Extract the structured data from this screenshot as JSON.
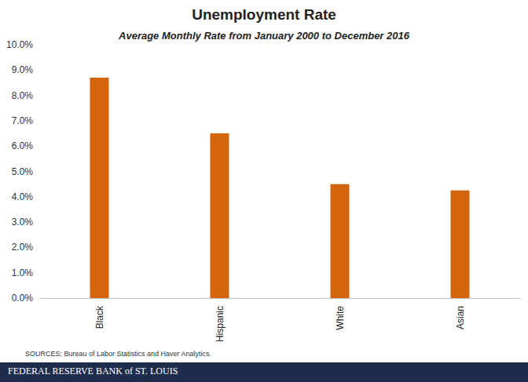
{
  "chart_data": {
    "type": "bar",
    "title": "Unemployment Rate",
    "subtitle": "Average Monthly Rate from January 2000 to December 2016",
    "categories": [
      "Black",
      "Hispanic",
      "White",
      "Asian"
    ],
    "values": [
      8.7,
      6.5,
      4.5,
      4.25
    ],
    "color": "#d4650f",
    "ylim": [
      0,
      10
    ],
    "yticks": [
      {
        "value": 0,
        "label": "0.0%"
      },
      {
        "value": 1,
        "label": "1.0%"
      },
      {
        "value": 2,
        "label": "2.0%"
      },
      {
        "value": 3,
        "label": "3.0%"
      },
      {
        "value": 4,
        "label": "4.0%"
      },
      {
        "value": 5,
        "label": "5.0%"
      },
      {
        "value": 6,
        "label": "6.0%"
      },
      {
        "value": 7,
        "label": "7.0%"
      },
      {
        "value": 8,
        "label": "8.0%"
      },
      {
        "value": 9,
        "label": "9.0%"
      },
      {
        "value": 10,
        "label": "10.0%"
      }
    ],
    "grid": false,
    "annotations": [
      "SOURCES: Bureau of Labor Statistics and Haver Analytics.",
      "FEDERAL RESERVE BANK of ST. LOUIS"
    ]
  }
}
